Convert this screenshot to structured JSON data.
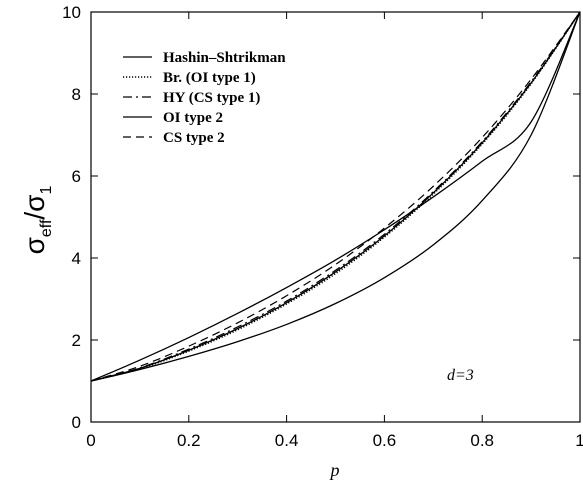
{
  "chart_data": {
    "type": "line",
    "title": "",
    "xlabel": "p",
    "ylabel_parts": {
      "main": "σ",
      "sub1": "eff",
      "sep": "/σ",
      "sub2": "1"
    },
    "xlim": [
      0,
      1
    ],
    "ylim": [
      0,
      10
    ],
    "x_ticks": [
      0,
      0.2,
      0.4,
      0.6,
      0.8,
      1
    ],
    "x_tick_labels": [
      "0",
      "0.2",
      "0.4",
      "0.6",
      "0.8",
      "1"
    ],
    "y_ticks": [
      0,
      2,
      4,
      6,
      8,
      10
    ],
    "y_tick_labels": [
      "0",
      "2",
      "4",
      "6",
      "8",
      "10"
    ],
    "grid": false,
    "legend_position": "top-left",
    "annotation": "d=3",
    "x": [
      0,
      0.1,
      0.2,
      0.3,
      0.4,
      0.5,
      0.6,
      0.7,
      0.8,
      0.9,
      1.0
    ],
    "series": [
      {
        "name": "Hashin–Shtrikman",
        "dash": "solid",
        "values": [
          1.0,
          1.51,
          2.06,
          2.65,
          3.28,
          3.95,
          4.69,
          5.49,
          6.36,
          7.32,
          10.0
        ]
      },
      {
        "name": "Hashin–Shtrikman lower",
        "legend": false,
        "dash": "solid",
        "values": [
          1.0,
          1.28,
          1.6,
          1.96,
          2.38,
          2.89,
          3.52,
          4.32,
          5.4,
          7.0,
          10.0
        ]
      },
      {
        "name": "Br. (OI type 1)",
        "dash": "dotted",
        "values": [
          1.0,
          1.3,
          1.73,
          2.25,
          2.88,
          3.62,
          4.51,
          5.56,
          6.78,
          8.25,
          10.0
        ]
      },
      {
        "name": "HY (CS type 1)",
        "dash": "dashdot",
        "values": [
          1.0,
          1.32,
          1.78,
          2.32,
          2.95,
          3.7,
          4.58,
          5.62,
          6.84,
          8.3,
          10.0
        ]
      },
      {
        "name": "OI type 2",
        "dash": "solid",
        "values": [
          1.0,
          1.31,
          1.75,
          2.28,
          2.91,
          3.66,
          4.54,
          5.59,
          6.81,
          8.27,
          10.0
        ]
      },
      {
        "name": "CS type 2",
        "dash": "dashed",
        "values": [
          1.0,
          1.36,
          1.85,
          2.42,
          3.08,
          3.84,
          4.73,
          5.75,
          6.94,
          8.36,
          10.0
        ]
      }
    ]
  }
}
